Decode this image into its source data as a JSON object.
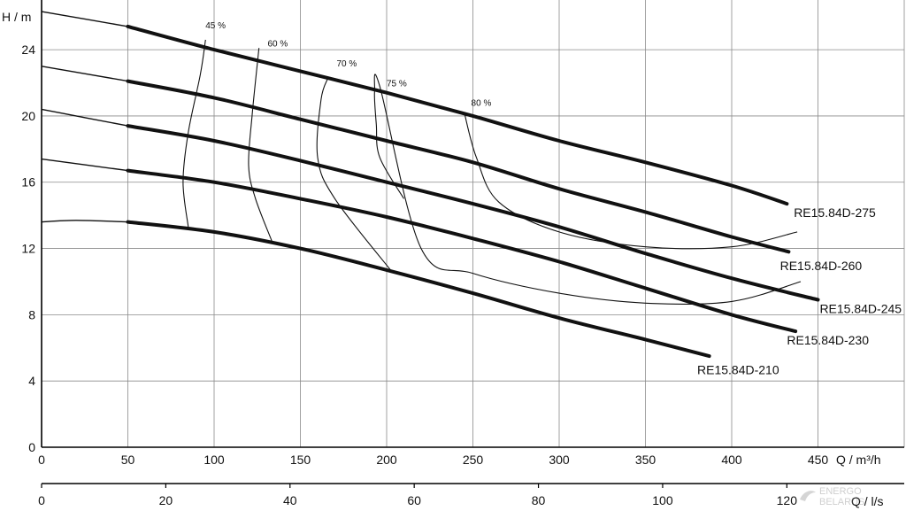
{
  "chart_data": {
    "type": "line",
    "ylabel": "H  / m",
    "xlabel": "Q  / m³/h",
    "x2label": "Q  / l/s",
    "xlim": [
      0,
      500
    ],
    "ylim": [
      0,
      27
    ],
    "x2lim": [
      0,
      138.9
    ],
    "x_ticks": [
      0,
      50,
      100,
      150,
      200,
      250,
      300,
      350,
      400,
      450
    ],
    "y_ticks": [
      0,
      4,
      8,
      12,
      16,
      20,
      24
    ],
    "x2_ticks": [
      0,
      20,
      40,
      60,
      80,
      100,
      120
    ],
    "grid": true,
    "series": [
      {
        "name": "RE15.84D-275",
        "x": [
          0,
          50,
          100,
          150,
          200,
          250,
          300,
          350,
          400,
          432
        ],
        "y": [
          26.3,
          25.4,
          24.0,
          22.7,
          21.4,
          20.0,
          18.5,
          17.2,
          15.8,
          14.7
        ]
      },
      {
        "name": "RE15.84D-260",
        "x": [
          0,
          50,
          100,
          150,
          200,
          250,
          300,
          350,
          400,
          433
        ],
        "y": [
          23.0,
          22.1,
          21.1,
          19.8,
          18.5,
          17.2,
          15.6,
          14.2,
          12.7,
          11.8
        ]
      },
      {
        "name": "RE15.84D-245",
        "x": [
          0,
          50,
          100,
          150,
          200,
          250,
          300,
          350,
          400,
          450
        ],
        "y": [
          20.4,
          19.4,
          18.5,
          17.3,
          16.0,
          14.7,
          13.3,
          11.7,
          10.2,
          8.9
        ]
      },
      {
        "name": "RE15.84D-230",
        "x": [
          0,
          50,
          100,
          150,
          200,
          250,
          300,
          350,
          400,
          437
        ],
        "y": [
          17.4,
          16.7,
          16.0,
          15.0,
          13.9,
          12.6,
          11.2,
          9.6,
          8.0,
          7.0
        ]
      },
      {
        "name": "RE15.84D-210",
        "x": [
          0,
          20,
          50,
          100,
          150,
          200,
          250,
          300,
          350,
          387
        ],
        "y": [
          13.6,
          13.7,
          13.6,
          13.0,
          12.0,
          10.7,
          9.3,
          7.8,
          6.5,
          5.5
        ]
      }
    ],
    "efficiency_curves": [
      {
        "label": "45 %",
        "points": [
          [
            85,
            13.3
          ],
          [
            82,
            16.0
          ],
          [
            85,
            19.0
          ],
          [
            92,
            22.5
          ],
          [
            95,
            24.6
          ]
        ]
      },
      {
        "label": "60 %",
        "points": [
          [
            134,
            12.3
          ],
          [
            124,
            15.0
          ],
          [
            120,
            17.0
          ],
          [
            122,
            20.0
          ],
          [
            126,
            24.1
          ]
        ]
      },
      {
        "label": "70 %",
        "points": [
          [
            203,
            10.6
          ],
          [
            170,
            15.0
          ],
          [
            160,
            17.5
          ],
          [
            162,
            21.0
          ],
          [
            166,
            22.3
          ]
        ]
      },
      {
        "label": "75 %",
        "points": [
          [
            210,
            15.0
          ],
          [
            196,
            17.5
          ],
          [
            194,
            19.5
          ],
          [
            193,
            21.5
          ],
          [
            196,
            21.8
          ],
          [
            220,
            12.0
          ],
          [
            250,
            10.5
          ],
          [
            300,
            9.3
          ],
          [
            350,
            8.7
          ],
          [
            400,
            8.8
          ],
          [
            440,
            10.0
          ]
        ]
      },
      {
        "label": "80 %",
        "points": [
          [
            245,
            20.2
          ],
          [
            252,
            17.5
          ],
          [
            265,
            14.8
          ],
          [
            300,
            13.0
          ],
          [
            350,
            12.1
          ],
          [
            400,
            12.1
          ],
          [
            438,
            13.0
          ]
        ]
      }
    ],
    "efficiency_labels": [
      {
        "text": "45 %",
        "x": 95,
        "y": 25.3
      },
      {
        "text": "60 %",
        "x": 131,
        "y": 24.2
      },
      {
        "text": "70 %",
        "x": 171,
        "y": 23.0
      },
      {
        "text": "75 %",
        "x": 200,
        "y": 21.8
      },
      {
        "text": "80 %",
        "x": 249,
        "y": 20.6
      }
    ],
    "model_labels": [
      {
        "text": "RE15.84D-275",
        "x": 436,
        "y": 13.9
      },
      {
        "text": "RE15.84D-260",
        "x": 428,
        "y": 10.7
      },
      {
        "text": "RE15.84D-245",
        "x": 451,
        "y": 8.1
      },
      {
        "text": "RE15.84D-230",
        "x": 432,
        "y": 6.2
      },
      {
        "text": "RE15.84D-210",
        "x": 380,
        "y": 4.4
      }
    ]
  },
  "watermark": {
    "line1": "ENERGO",
    "line2": "BELARUS"
  }
}
